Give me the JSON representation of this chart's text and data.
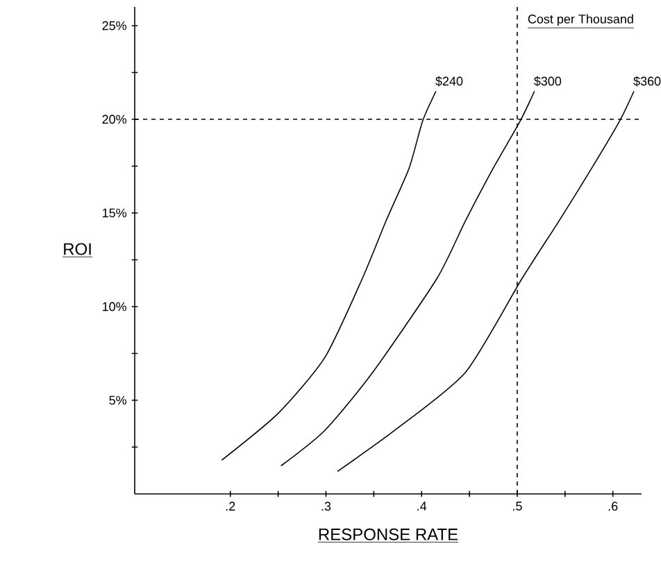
{
  "chart_data": {
    "type": "line",
    "xlabel": "RESPONSE RATE",
    "ylabel": "ROI",
    "legend_title": "Cost per Thousand",
    "legend": false,
    "marker": "none",
    "line_style": "solid",
    "grid": false,
    "xlim": [
      0.1,
      0.63
    ],
    "ylim": [
      0,
      26
    ],
    "xticks": [
      {
        "value": 0.2,
        "label": ".2"
      },
      {
        "value": 0.25,
        "label": null
      },
      {
        "value": 0.3,
        "label": ".3"
      },
      {
        "value": 0.35,
        "label": null
      },
      {
        "value": 0.4,
        "label": ".4"
      },
      {
        "value": 0.45,
        "label": null
      },
      {
        "value": 0.5,
        "label": ".5"
      },
      {
        "value": 0.55,
        "label": null
      },
      {
        "value": 0.6,
        "label": ".6"
      }
    ],
    "yticks": [
      {
        "value": 2.5,
        "label": null
      },
      {
        "value": 5,
        "label": "5%"
      },
      {
        "value": 7.5,
        "label": null
      },
      {
        "value": 10,
        "label": "10%"
      },
      {
        "value": 12.5,
        "label": null
      },
      {
        "value": 15,
        "label": "15%"
      },
      {
        "value": 17.5,
        "label": null
      },
      {
        "value": 20,
        "label": "20%"
      },
      {
        "value": 22.5,
        "label": null
      },
      {
        "value": 25,
        "label": "25%"
      }
    ],
    "series": [
      {
        "name": "$240",
        "color": "#000000",
        "x": [
          0.191,
          0.25,
          0.299,
          0.338,
          0.363,
          0.387,
          0.401,
          0.415
        ],
        "values": [
          1.8,
          4.3,
          7.3,
          11.5,
          14.6,
          17.4,
          19.9,
          21.5
        ]
      },
      {
        "name": "$300",
        "color": "#000000",
        "x": [
          0.253,
          0.299,
          0.349,
          0.416,
          0.446,
          0.475,
          0.503,
          0.518
        ],
        "values": [
          1.5,
          3.4,
          6.5,
          11.5,
          14.6,
          17.4,
          19.9,
          21.5
        ]
      },
      {
        "name": "$360",
        "color": "#000000",
        "x": [
          0.312,
          0.372,
          0.446,
          0.505,
          0.544,
          0.578,
          0.607,
          0.622
        ],
        "values": [
          1.2,
          3.4,
          6.5,
          11.5,
          14.6,
          17.4,
          19.9,
          21.5
        ]
      }
    ],
    "ref_lines": [
      {
        "axis": "y",
        "value": 20,
        "line_style": "dashed"
      },
      {
        "axis": "x",
        "value": 0.5,
        "line_style": "dashed"
      }
    ]
  }
}
